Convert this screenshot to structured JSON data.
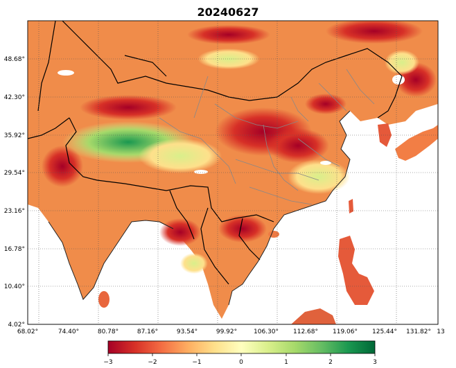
{
  "title": "20240627",
  "map": {
    "lat_ticks": [
      "48.68°",
      "42.30°",
      "35.92°",
      "29.54°",
      "23.16°",
      "16.78°",
      "10.40°",
      "4.02°"
    ],
    "lon_ticks": [
      "68.02°",
      "74.40°",
      "80.78°",
      "87.16°",
      "93.54°",
      "99.92°",
      "106.30°",
      "112.68°",
      "119.06°",
      "125.44°",
      "131.82°",
      "13"
    ],
    "colormap": "RdYlGn",
    "range": [
      -3,
      3
    ]
  },
  "colorbar": {
    "ticks": [
      "−3",
      "−2",
      "−1",
      "0",
      "1",
      "2",
      "3"
    ],
    "colors": [
      "#a50026",
      "#d73027",
      "#f46d43",
      "#fdae61",
      "#fee08b",
      "#ffffbf",
      "#d9ef8b",
      "#a6d96a",
      "#66bd63",
      "#1a9850",
      "#006837"
    ]
  }
}
